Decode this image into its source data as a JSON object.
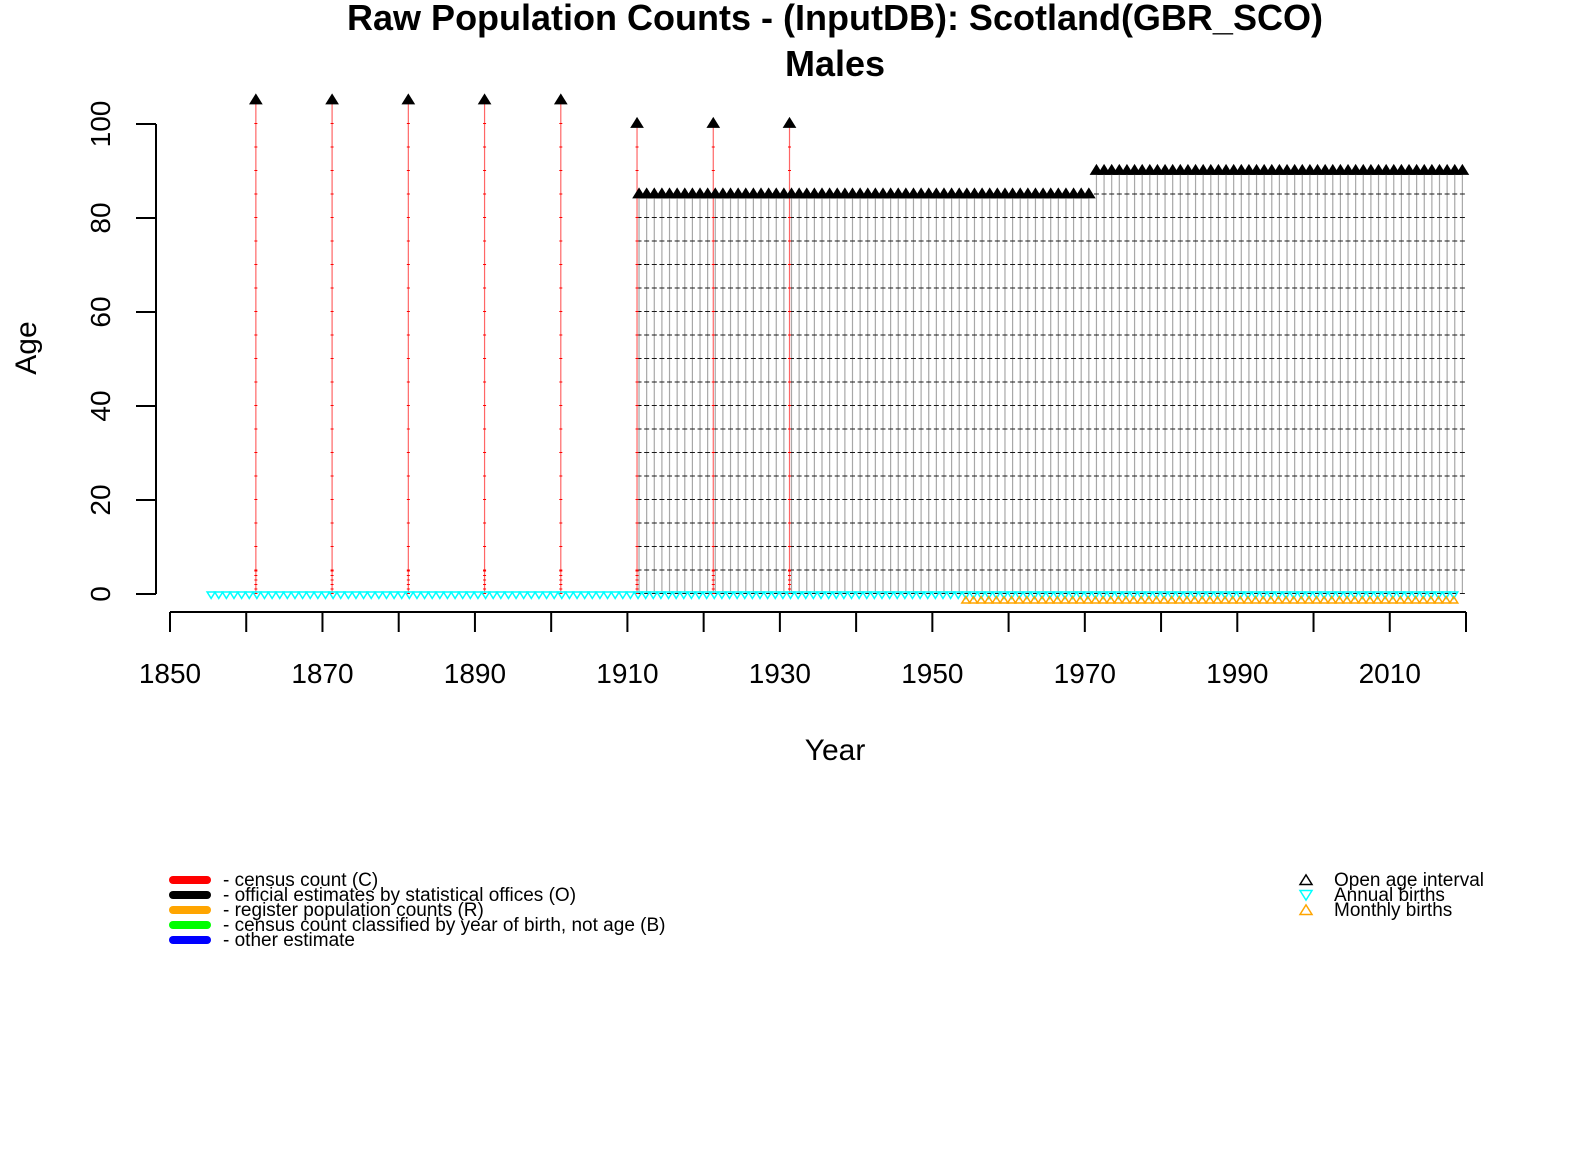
{
  "chart_data": {
    "type": "scatter",
    "title": "Raw Population Counts - (InputDB): Scotland(GBR_SCO)",
    "subtitle": "Males",
    "xlabel": "Year",
    "ylabel": "Age",
    "xlim": [
      1850,
      2020
    ],
    "ylim": [
      0,
      100
    ],
    "x_ticks": [
      "1850",
      "1870",
      "1890",
      "1910",
      "1930",
      "1950",
      "1970",
      "1990",
      "2010"
    ],
    "y_ticks": [
      "0",
      "20",
      "40",
      "60",
      "80",
      "100"
    ],
    "grid": false,
    "census_counts": {
      "years": [
        1861,
        1871,
        1881,
        1891,
        1901,
        1911,
        1921,
        1931
      ],
      "open_age": [
        105,
        105,
        105,
        105,
        105,
        100,
        100,
        100
      ]
    },
    "official_estimates": {
      "year_start": 1911,
      "year_end": 1970,
      "open_age": 85,
      "year_start_2": 1971,
      "year_end_2": 2019,
      "open_age_2": 90
    },
    "annual_births": {
      "year_start": 1855,
      "year_end": 2018
    },
    "monthly_births": {
      "year_start": 1954,
      "year_end": 2018
    },
    "legend_left": [
      {
        "label": "- census count (C)",
        "color": "#ff0000"
      },
      {
        "label": "- official estimates by statistical offices (O)",
        "color": "#000000"
      },
      {
        "label": "- register population counts (R)",
        "color": "#ffa500"
      },
      {
        "label": "- census count classified by year of birth, not age (B)",
        "color": "#00ff00"
      },
      {
        "label": "- other estimate",
        "color": "#0000ff"
      }
    ],
    "legend_right": [
      {
        "label": "Open age interval",
        "color": "#000000",
        "symbol": "triangle-up"
      },
      {
        "label": "Annual births",
        "color": "#00ffff",
        "symbol": "triangle-down"
      },
      {
        "label": "Monthly births",
        "color": "#ffa500",
        "symbol": "triangle-up"
      }
    ],
    "legend_placement": [
      "bottom-left",
      "bottom-right"
    ]
  }
}
